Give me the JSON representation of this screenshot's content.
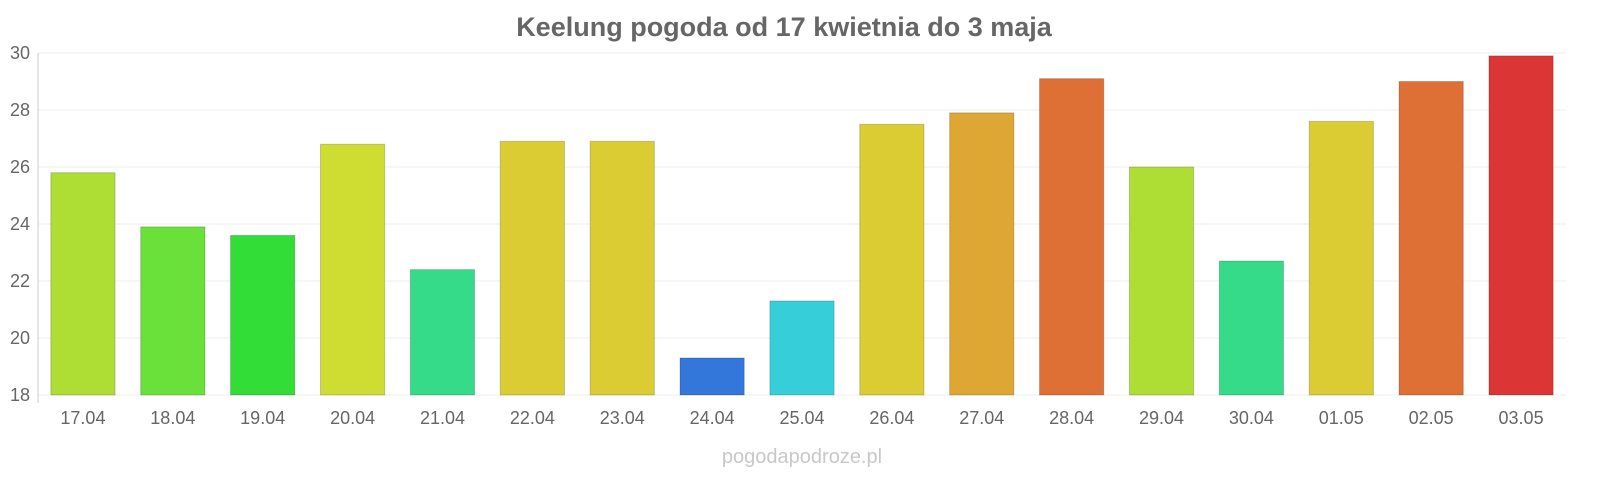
{
  "chart_data": {
    "type": "bar",
    "title": "Keelung pogoda od 17 kwietnia do 3 maja",
    "xlabel": "",
    "ylabel": "",
    "ylim": [
      18,
      30
    ],
    "yticks": [
      "18",
      "20",
      "22",
      "24",
      "26",
      "28",
      "30"
    ],
    "categories": [
      "17.04",
      "18.04",
      "19.04",
      "20.04",
      "21.04",
      "22.04",
      "23.04",
      "24.04",
      "25.04",
      "26.04",
      "27.04",
      "28.04",
      "29.04",
      "30.04",
      "01.05",
      "02.05",
      "03.05"
    ],
    "values": [
      25.8,
      23.9,
      23.6,
      26.8,
      22.4,
      26.9,
      26.9,
      19.3,
      21.3,
      27.5,
      27.9,
      29.1,
      26.0,
      22.7,
      27.6,
      29.0,
      29.9
    ],
    "colors": [
      "#aedd33",
      "#6ae03a",
      "#33dd38",
      "#cfdd33",
      "#35db88",
      "#dccc33",
      "#dccc33",
      "#3477da",
      "#36cfd9",
      "#dccc33",
      "#dea733",
      "#de6f35",
      "#aedd33",
      "#35db88",
      "#dccc33",
      "#de6f35",
      "#dc3535"
    ],
    "grid": true,
    "legend": "none"
  },
  "watermark": "pogodapodroze.pl"
}
